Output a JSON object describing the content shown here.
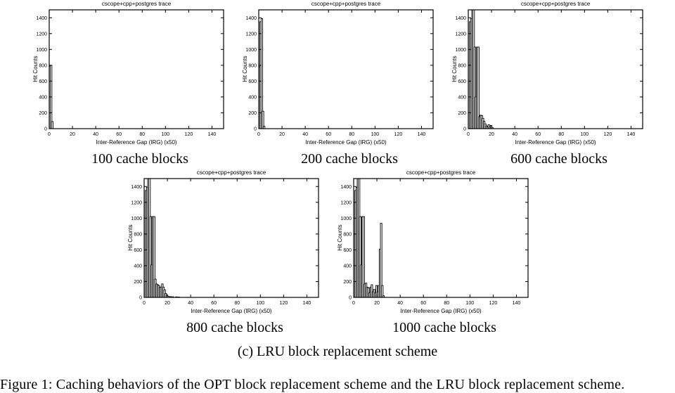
{
  "page": {
    "background_color": "#ffffff",
    "text_color": "#000000",
    "bar_fill_color": "#ffffff",
    "bar_stroke_color": "#000000"
  },
  "figure": {
    "subfigure_caption": "(c) LRU block replacement scheme",
    "figure_caption": "Figure 1: Caching behaviors of the OPT block replacement scheme and the LRU block replacement scheme."
  },
  "chart_data": [
    {
      "type": "bar",
      "title": "cscope+cpp+postgres trace",
      "xlabel": "Inter-Reference Gap (IRG) (x50)",
      "ylabel": "Hit Counts",
      "caption": "100 cache blocks",
      "xlim": [
        0,
        150
      ],
      "ylim": [
        0,
        1500
      ],
      "xticks": [
        0,
        20,
        40,
        60,
        80,
        100,
        120,
        140
      ],
      "yticks": [
        0,
        200,
        400,
        600,
        800,
        1000,
        1200,
        1400
      ],
      "grid": false,
      "bars": [
        [
          0,
          790
        ],
        [
          1,
          800
        ],
        [
          2,
          90
        ]
      ]
    },
    {
      "type": "bar",
      "title": "cscope+cpp+postgres trace",
      "xlabel": "Inter-Reference Gap (IRG) (x50)",
      "ylabel": "Hit Counts",
      "caption": "200 cache blocks",
      "xlim": [
        0,
        150
      ],
      "ylim": [
        0,
        1500
      ],
      "xticks": [
        0,
        20,
        40,
        60,
        80,
        100,
        120,
        140
      ],
      "yticks": [
        0,
        200,
        400,
        600,
        800,
        1000,
        1200,
        1400
      ],
      "grid": false,
      "bars": [
        [
          0,
          780
        ],
        [
          1,
          1350
        ],
        [
          2,
          1390
        ],
        [
          3,
          220
        ],
        [
          4,
          30
        ]
      ]
    },
    {
      "type": "bar",
      "title": "cscope+cpp+postgres trace",
      "xlabel": "Inter-Reference Gap (IRG) (x50)",
      "ylabel": "Hit Counts",
      "caption": "600 cache blocks",
      "xlim": [
        0,
        150
      ],
      "ylim": [
        0,
        1500
      ],
      "xticks": [
        0,
        20,
        40,
        60,
        80,
        100,
        120,
        140
      ],
      "yticks": [
        0,
        200,
        400,
        600,
        800,
        1000,
        1200,
        1400
      ],
      "grid": false,
      "bars": [
        [
          0,
          800
        ],
        [
          1,
          1350
        ],
        [
          2,
          1390
        ],
        [
          3,
          1500
        ],
        [
          4,
          1500
        ],
        [
          5,
          1030
        ],
        [
          6,
          400
        ],
        [
          7,
          1030
        ],
        [
          8,
          1030
        ],
        [
          9,
          150
        ],
        [
          10,
          170
        ],
        [
          11,
          165
        ],
        [
          12,
          130
        ],
        [
          13,
          95
        ],
        [
          14,
          60
        ],
        [
          15,
          35
        ],
        [
          16,
          25
        ],
        [
          17,
          50
        ],
        [
          18,
          20
        ],
        [
          19,
          40
        ],
        [
          20,
          15
        ]
      ]
    },
    {
      "type": "bar",
      "title": "cscope+cpp+postgres trace",
      "xlabel": "Inter-Reference Gap (IRG) (x50)",
      "ylabel": "Hit Counts",
      "caption": "800 cache blocks",
      "xlim": [
        0,
        150
      ],
      "ylim": [
        0,
        1500
      ],
      "xticks": [
        0,
        20,
        40,
        60,
        80,
        100,
        120,
        140
      ],
      "yticks": [
        0,
        200,
        400,
        600,
        800,
        1000,
        1200,
        1400
      ],
      "grid": false,
      "bars": [
        [
          0,
          800
        ],
        [
          1,
          1350
        ],
        [
          2,
          1390
        ],
        [
          3,
          1500
        ],
        [
          4,
          1500
        ],
        [
          5,
          1020
        ],
        [
          6,
          410
        ],
        [
          7,
          1020
        ],
        [
          8,
          1020
        ],
        [
          9,
          230
        ],
        [
          10,
          170
        ],
        [
          11,
          160
        ],
        [
          12,
          150
        ],
        [
          13,
          130
        ],
        [
          14,
          130
        ],
        [
          15,
          170
        ],
        [
          16,
          130
        ],
        [
          17,
          95
        ],
        [
          18,
          50
        ],
        [
          19,
          30
        ],
        [
          20,
          15
        ],
        [
          22,
          10
        ],
        [
          24,
          8
        ],
        [
          27,
          6
        ],
        [
          29,
          5
        ]
      ]
    },
    {
      "type": "bar",
      "title": "cscope+cpp+postgres trace",
      "xlabel": "Inter-Reference Gap (IRG) (x50)",
      "ylabel": "Hit Counts",
      "caption": "1000 cache blocks",
      "xlim": [
        0,
        150
      ],
      "ylim": [
        0,
        1500
      ],
      "xticks": [
        0,
        20,
        40,
        60,
        80,
        100,
        120,
        140
      ],
      "yticks": [
        0,
        200,
        400,
        600,
        800,
        1000,
        1200,
        1400
      ],
      "grid": false,
      "bars": [
        [
          0,
          800
        ],
        [
          1,
          1350
        ],
        [
          2,
          1390
        ],
        [
          3,
          1500
        ],
        [
          4,
          1500
        ],
        [
          5,
          1020
        ],
        [
          6,
          410
        ],
        [
          7,
          1020
        ],
        [
          8,
          1020
        ],
        [
          9,
          170
        ],
        [
          10,
          180
        ],
        [
          11,
          130
        ],
        [
          12,
          120
        ],
        [
          13,
          60
        ],
        [
          14,
          130
        ],
        [
          15,
          160
        ],
        [
          16,
          70
        ],
        [
          17,
          100
        ],
        [
          18,
          60
        ],
        [
          19,
          150
        ],
        [
          20,
          70
        ],
        [
          21,
          150
        ],
        [
          22,
          610
        ],
        [
          23,
          935
        ],
        [
          24,
          150
        ],
        [
          25,
          20
        ]
      ]
    }
  ]
}
